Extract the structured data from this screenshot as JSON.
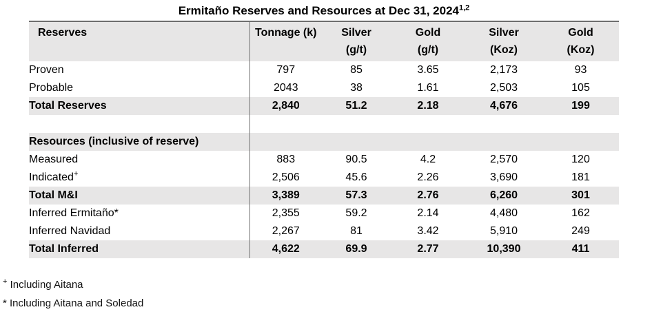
{
  "title": {
    "text": "Ermitaño Reserves and Resources at Dec 31, 2024",
    "superscript": "1,2"
  },
  "table": {
    "columns": [
      {
        "key": "category",
        "line1": "Reserves",
        "line2": ""
      },
      {
        "key": "tonnage-k",
        "line1": "Tonnage (k)",
        "line2": ""
      },
      {
        "key": "silver-gpt",
        "line1": "Silver",
        "line2": "(g/t)"
      },
      {
        "key": "gold-gpt",
        "line1": "Gold",
        "line2": "(g/t)"
      },
      {
        "key": "silver-koz",
        "line1": "Silver",
        "line2": "(Koz)"
      },
      {
        "key": "gold-koz",
        "line1": "Gold",
        "line2": "(Koz)"
      }
    ],
    "rows": [
      {
        "label": "Proven",
        "label_sup": "",
        "style": "normal",
        "values": [
          "797",
          "85",
          "3.65",
          "2,173",
          "93"
        ]
      },
      {
        "label": "Probable",
        "label_sup": "",
        "style": "normal",
        "values": [
          "2043",
          "38",
          "1.61",
          "2,503",
          "105"
        ]
      },
      {
        "label": "Total Reserves",
        "label_sup": "",
        "style": "total",
        "values": [
          "2,840",
          "51.2",
          "2.18",
          "4,676",
          "199"
        ]
      },
      {
        "label": "",
        "label_sup": "",
        "style": "spacer",
        "values": [
          "",
          "",
          "",
          "",
          ""
        ]
      },
      {
        "label": "Resources (inclusive of reserve)",
        "label_sup": "",
        "style": "section",
        "values": [
          "",
          "",
          "",
          "",
          ""
        ]
      },
      {
        "label": "Measured",
        "label_sup": "",
        "style": "normal",
        "values": [
          "883",
          "90.5",
          "4.2",
          "2,570",
          "120"
        ]
      },
      {
        "label": "Indicated",
        "label_sup": "+",
        "style": "normal",
        "values": [
          "2,506",
          "45.6",
          "2.26",
          "3,690",
          "181"
        ]
      },
      {
        "label": "Total M&I",
        "label_sup": "",
        "style": "total",
        "values": [
          "3,389",
          "57.3",
          "2.76",
          "6,260",
          "301"
        ]
      },
      {
        "label": "Inferred Ermitaño*",
        "label_sup": "",
        "style": "normal",
        "values": [
          "2,355",
          "59.2",
          "2.14",
          "4,480",
          "162"
        ]
      },
      {
        "label": "Inferred Navidad",
        "label_sup": "",
        "style": "normal",
        "values": [
          "2,267",
          "81",
          "3.42",
          "5,910",
          "249"
        ]
      },
      {
        "label": "Total Inferred",
        "label_sup": "",
        "style": "total",
        "values": [
          "4,622",
          "69.9",
          "2.77",
          "10,390",
          "411"
        ]
      }
    ]
  },
  "footnotes": [
    {
      "marker": "+",
      "superscript": true,
      "text": "Including Aitana"
    },
    {
      "marker": "*",
      "superscript": false,
      "text": "Including Aitana and Soledad"
    }
  ],
  "colors": {
    "band": "#e7e6e6",
    "divider": "#707070",
    "top_border": "#6e6e6e",
    "text": "#000000",
    "background": "#ffffff"
  }
}
